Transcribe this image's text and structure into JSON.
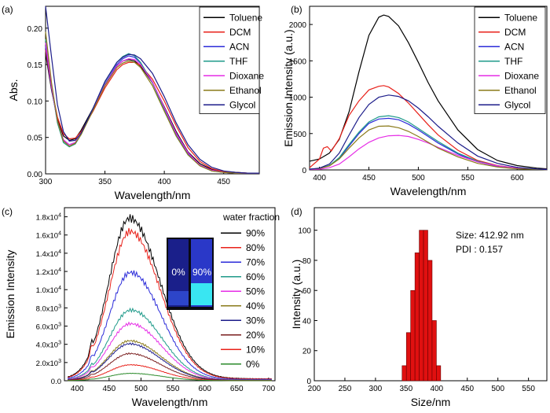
{
  "chart_data": [
    {
      "panel": "(a)",
      "type": "line",
      "xlabel": "Wavelength/nm",
      "ylabel": "Abs.",
      "xlim": [
        300,
        480
      ],
      "ylim": [
        0,
        0.23
      ],
      "xticks": [
        300,
        350,
        400,
        450
      ],
      "yticks": [
        0.0,
        0.05,
        0.1,
        0.15,
        0.2
      ],
      "ytick_labels": [
        "0.00",
        "0.05",
        "0.10",
        "0.15",
        "0.20"
      ],
      "legend_position": "top-right",
      "series": [
        {
          "name": "Toluene",
          "color": "#000000",
          "x": [
            300,
            305,
            310,
            315,
            320,
            325,
            330,
            340,
            350,
            360,
            365,
            370,
            375,
            380,
            390,
            400,
            410,
            420,
            430,
            440,
            450,
            460,
            470,
            480
          ],
          "y": [
            0.165,
            0.115,
            0.075,
            0.052,
            0.046,
            0.048,
            0.06,
            0.09,
            0.122,
            0.148,
            0.155,
            0.157,
            0.155,
            0.148,
            0.125,
            0.092,
            0.058,
            0.03,
            0.014,
            0.006,
            0.003,
            0.002,
            0.001,
            0.001
          ]
        },
        {
          "name": "DCM",
          "color": "#e8211a",
          "x": [
            300,
            305,
            310,
            315,
            320,
            325,
            330,
            340,
            350,
            360,
            365,
            370,
            375,
            380,
            390,
            400,
            410,
            420,
            430,
            440,
            450,
            460,
            470,
            480
          ],
          "y": [
            0.17,
            0.118,
            0.078,
            0.055,
            0.048,
            0.049,
            0.058,
            0.086,
            0.118,
            0.143,
            0.15,
            0.153,
            0.153,
            0.149,
            0.13,
            0.1,
            0.066,
            0.036,
            0.017,
            0.007,
            0.003,
            0.002,
            0.001,
            0.001
          ]
        },
        {
          "name": "ACN",
          "color": "#2b2bd9",
          "x": [
            300,
            305,
            310,
            315,
            320,
            325,
            330,
            340,
            350,
            360,
            365,
            370,
            375,
            380,
            390,
            400,
            410,
            420,
            430,
            440,
            450,
            460,
            470,
            480
          ],
          "y": [
            0.175,
            0.118,
            0.072,
            0.046,
            0.04,
            0.043,
            0.055,
            0.088,
            0.123,
            0.15,
            0.158,
            0.162,
            0.16,
            0.152,
            0.126,
            0.09,
            0.055,
            0.028,
            0.012,
            0.005,
            0.002,
            0.001,
            0.001,
            0.001
          ]
        },
        {
          "name": "THF",
          "color": "#1f9a8a",
          "x": [
            300,
            305,
            310,
            315,
            320,
            325,
            330,
            340,
            350,
            360,
            365,
            370,
            375,
            380,
            390,
            400,
            410,
            420,
            430,
            440,
            450,
            460,
            470,
            480
          ],
          "y": [
            0.185,
            0.12,
            0.07,
            0.043,
            0.037,
            0.041,
            0.054,
            0.09,
            0.126,
            0.153,
            0.161,
            0.165,
            0.162,
            0.153,
            0.125,
            0.087,
            0.052,
            0.026,
            0.011,
            0.004,
            0.002,
            0.001,
            0.001,
            0.001
          ]
        },
        {
          "name": "Dioxane",
          "color": "#e62ee6",
          "x": [
            300,
            305,
            310,
            315,
            320,
            325,
            330,
            340,
            350,
            360,
            365,
            370,
            375,
            380,
            390,
            400,
            410,
            420,
            430,
            440,
            450,
            460,
            470,
            480
          ],
          "y": [
            0.18,
            0.12,
            0.073,
            0.047,
            0.04,
            0.043,
            0.055,
            0.088,
            0.122,
            0.148,
            0.155,
            0.158,
            0.157,
            0.15,
            0.126,
            0.091,
            0.056,
            0.029,
            0.012,
            0.005,
            0.002,
            0.001,
            0.001,
            0.001
          ]
        },
        {
          "name": "Ethanol",
          "color": "#8a7a1a",
          "x": [
            300,
            305,
            310,
            315,
            320,
            325,
            330,
            340,
            350,
            360,
            365,
            370,
            375,
            380,
            390,
            400,
            410,
            420,
            430,
            440,
            450,
            460,
            470,
            480
          ],
          "y": [
            0.195,
            0.125,
            0.073,
            0.045,
            0.038,
            0.042,
            0.054,
            0.087,
            0.121,
            0.146,
            0.152,
            0.155,
            0.153,
            0.146,
            0.121,
            0.086,
            0.052,
            0.026,
            0.011,
            0.004,
            0.002,
            0.001,
            0.001,
            0.001
          ]
        },
        {
          "name": "Glycol",
          "color": "#1c1c8a",
          "x": [
            300,
            305,
            310,
            315,
            320,
            325,
            330,
            340,
            350,
            360,
            365,
            370,
            375,
            380,
            390,
            400,
            410,
            420,
            430,
            440,
            450,
            460,
            470,
            480
          ],
          "y": [
            0.23,
            0.16,
            0.095,
            0.058,
            0.045,
            0.046,
            0.056,
            0.09,
            0.127,
            0.153,
            0.16,
            0.164,
            0.163,
            0.158,
            0.138,
            0.106,
            0.07,
            0.04,
            0.02,
            0.009,
            0.004,
            0.002,
            0.001,
            0.001
          ]
        }
      ]
    },
    {
      "panel": "(b)",
      "type": "line",
      "xlabel": "Wavelength/nm",
      "ylabel": "Emission Intensity (a.u.)",
      "xlim": [
        390,
        630
      ],
      "ylim": [
        0,
        2250
      ],
      "xticks": [
        400,
        450,
        500,
        550,
        600
      ],
      "yticks": [
        0,
        500,
        1000,
        1500,
        2000
      ],
      "legend_position": "top-right",
      "series": [
        {
          "name": "Toluene",
          "color": "#000000",
          "x": [
            390,
            400,
            410,
            420,
            430,
            440,
            450,
            460,
            465,
            470,
            480,
            490,
            500,
            510,
            520,
            540,
            560,
            580,
            600,
            620,
            630
          ],
          "y": [
            120,
            150,
            230,
            420,
            800,
            1350,
            1850,
            2100,
            2130,
            2110,
            1980,
            1750,
            1480,
            1200,
            950,
            550,
            280,
            130,
            60,
            25,
            15
          ]
        },
        {
          "name": "DCM",
          "color": "#e8211a",
          "x": [
            390,
            400,
            404,
            408,
            412,
            420,
            430,
            440,
            450,
            460,
            465,
            470,
            480,
            490,
            500,
            510,
            520,
            540,
            560,
            580,
            600,
            620,
            630
          ],
          "y": [
            30,
            150,
            300,
            320,
            260,
            430,
            750,
            950,
            1100,
            1150,
            1160,
            1140,
            1050,
            920,
            770,
            620,
            480,
            270,
            130,
            60,
            25,
            10,
            5
          ]
        },
        {
          "name": "ACN",
          "color": "#2b2bd9",
          "x": [
            390,
            400,
            410,
            420,
            430,
            440,
            450,
            460,
            470,
            480,
            490,
            500,
            510,
            520,
            540,
            560,
            580,
            600,
            620,
            630
          ],
          "y": [
            10,
            20,
            60,
            160,
            330,
            500,
            640,
            700,
            710,
            690,
            630,
            550,
            460,
            370,
            220,
            110,
            50,
            20,
            8,
            5
          ]
        },
        {
          "name": "THF",
          "color": "#1f9a8a",
          "x": [
            390,
            400,
            410,
            420,
            430,
            440,
            450,
            460,
            470,
            480,
            490,
            500,
            510,
            520,
            540,
            560,
            580,
            600,
            620,
            630
          ],
          "y": [
            10,
            20,
            60,
            170,
            350,
            520,
            660,
            730,
            745,
            720,
            660,
            570,
            480,
            390,
            230,
            120,
            55,
            22,
            8,
            5
          ]
        },
        {
          "name": "Dioxane",
          "color": "#e62ee6",
          "x": [
            390,
            400,
            410,
            420,
            430,
            440,
            450,
            460,
            470,
            480,
            490,
            500,
            510,
            520,
            540,
            560,
            580,
            600,
            620,
            630
          ],
          "y": [
            5,
            10,
            30,
            80,
            180,
            290,
            380,
            440,
            470,
            475,
            460,
            420,
            370,
            310,
            200,
            110,
            55,
            25,
            10,
            5
          ]
        },
        {
          "name": "Ethanol",
          "color": "#8a7a1a",
          "x": [
            390,
            400,
            410,
            420,
            430,
            440,
            450,
            460,
            470,
            480,
            490,
            500,
            510,
            520,
            540,
            560,
            580,
            600,
            620,
            630
          ],
          "y": [
            10,
            20,
            55,
            150,
            300,
            440,
            550,
            600,
            605,
            580,
            530,
            460,
            380,
            300,
            180,
            90,
            40,
            15,
            6,
            3
          ]
        },
        {
          "name": "Glycol",
          "color": "#1c1c8a",
          "x": [
            390,
            400,
            410,
            420,
            430,
            440,
            450,
            460,
            470,
            480,
            490,
            500,
            510,
            520,
            540,
            560,
            580,
            600,
            620,
            630
          ],
          "y": [
            10,
            25,
            80,
            230,
            480,
            720,
            900,
            1000,
            1030,
            1010,
            950,
            850,
            730,
            600,
            370,
            190,
            90,
            35,
            12,
            5
          ]
        }
      ]
    },
    {
      "panel": "(c)",
      "type": "line",
      "xlabel": "Wavelength/nm",
      "ylabel": "Emission Intensity",
      "xlim": [
        380,
        710
      ],
      "ylim": [
        0,
        19000
      ],
      "xticks": [
        400,
        450,
        500,
        550,
        600,
        650,
        700
      ],
      "yticks": [
        0,
        2000,
        4000,
        6000,
        8000,
        10000,
        12000,
        14000,
        16000,
        18000
      ],
      "ytick_labels": [
        {
          "mantissa": "0.0",
          "exp": ""
        },
        {
          "mantissa": "2.0x10",
          "exp": "3"
        },
        {
          "mantissa": "4.0x10",
          "exp": "3"
        },
        {
          "mantissa": "6.0x10",
          "exp": "3"
        },
        {
          "mantissa": "8.0x10",
          "exp": "3"
        },
        {
          "mantissa": "1.0x10",
          "exp": "4"
        },
        {
          "mantissa": "1.2x10",
          "exp": "4"
        },
        {
          "mantissa": "1.4x10",
          "exp": "4"
        },
        {
          "mantissa": "1.6x10",
          "exp": "4"
        },
        {
          "mantissa": "1.8x10",
          "exp": "4"
        }
      ],
      "legend_title": "water fraction",
      "legend_position": "top-right",
      "series": [
        {
          "name": "90%",
          "color": "#000000",
          "peak": 17500
        },
        {
          "name": "80%",
          "color": "#e8211a",
          "peak": 15900
        },
        {
          "name": "70%",
          "color": "#2b2bd9",
          "peak": 11600
        },
        {
          "name": "60%",
          "color": "#1f9a8a",
          "peak": 7700
        },
        {
          "name": "50%",
          "color": "#e62ee6",
          "peak": 6300
        },
        {
          "name": "40%",
          "color": "#8a7a1a",
          "peak": 4400
        },
        {
          "name": "30%",
          "color": "#1c1c8a",
          "peak": 4000
        },
        {
          "name": "20%",
          "color": "#7a1e1e",
          "peak": 2900
        },
        {
          "name": "10%",
          "color": "#e8211a",
          "peak": 1700
        },
        {
          "name": "0%",
          "color": "#2a8a2a",
          "peak": 800
        }
      ],
      "inset_labels": [
        "0%",
        "90%"
      ]
    },
    {
      "panel": "(d)",
      "type": "bar",
      "xlabel": "Size/nm",
      "ylabel": "Intensity (a.u.)",
      "xlim": [
        200,
        580
      ],
      "ylim": [
        0,
        115
      ],
      "xticks": [
        200,
        250,
        300,
        350,
        400,
        450,
        500,
        550
      ],
      "yticks": [
        0,
        20,
        40,
        60,
        80,
        100
      ],
      "bar_color": "#e01010",
      "categories": [
        347,
        354,
        361,
        368,
        375,
        382,
        389,
        396,
        403
      ],
      "values": [
        10,
        32,
        60,
        85,
        100,
        100,
        80,
        40,
        10
      ],
      "annotations": [
        "Size: 412.92 nm",
        "PDI : 0.157"
      ]
    }
  ]
}
